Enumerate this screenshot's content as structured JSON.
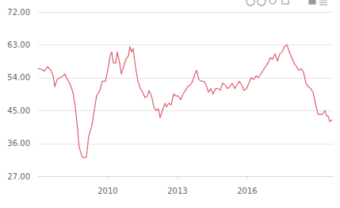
{
  "chart_data": {
    "type": "line",
    "x": [
      2007.0,
      2007.14,
      2007.27,
      2007.41,
      2007.55,
      2007.65,
      2007.72,
      2007.82,
      2007.95,
      2008.09,
      2008.16,
      2008.26,
      2008.36,
      2008.5,
      2008.6,
      2008.7,
      2008.77,
      2008.88,
      2008.98,
      2009.08,
      2009.18,
      2009.32,
      2009.42,
      2009.52,
      2009.66,
      2009.76,
      2009.9,
      2010.0,
      2010.1,
      2010.17,
      2010.24,
      2010.34,
      2010.41,
      2010.51,
      2010.58,
      2010.68,
      2010.78,
      2010.89,
      2010.95,
      2011.02,
      2011.09,
      2011.19,
      2011.3,
      2011.4,
      2011.5,
      2011.6,
      2011.71,
      2011.77,
      2011.88,
      2011.98,
      2012.08,
      2012.18,
      2012.25,
      2012.35,
      2012.46,
      2012.52,
      2012.63,
      2012.73,
      2012.83,
      2012.93,
      2013.03,
      2013.14,
      2013.24,
      2013.34,
      2013.44,
      2013.55,
      2013.65,
      2013.75,
      2013.82,
      2013.92,
      2014.02,
      2014.13,
      2014.23,
      2014.33,
      2014.43,
      2014.53,
      2014.64,
      2014.74,
      2014.84,
      2014.94,
      2015.05,
      2015.15,
      2015.25,
      2015.35,
      2015.46,
      2015.56,
      2015.66,
      2015.76,
      2015.86,
      2015.97,
      2016.07,
      2016.17,
      2016.27,
      2016.38,
      2016.48,
      2016.58,
      2016.68,
      2016.79,
      2016.89,
      2016.99,
      2017.09,
      2017.19,
      2017.3,
      2017.4,
      2017.5,
      2017.6,
      2017.71,
      2017.81,
      2017.91,
      2018.01,
      2018.12,
      2018.22,
      2018.32,
      2018.42,
      2018.52,
      2018.63,
      2018.73,
      2018.83,
      2018.93,
      2019.04,
      2019.14,
      2019.24,
      2019.34,
      2019.41,
      2019.48,
      2019.55,
      2019.65
    ],
    "values": [
      56.5,
      56.3,
      55.8,
      57,
      56,
      54.5,
      51.5,
      53.5,
      54,
      54.5,
      55,
      53.5,
      52.5,
      50,
      46,
      40,
      35,
      32.5,
      32,
      32.3,
      38,
      41,
      45,
      49,
      50.5,
      53,
      53,
      56,
      60,
      61,
      58,
      58,
      61,
      58,
      55,
      57,
      59,
      60,
      62.5,
      61,
      62,
      57,
      53,
      51,
      50,
      48.5,
      49,
      50.5,
      49,
      46,
      45,
      45.5,
      43,
      45,
      47,
      46,
      47,
      46.5,
      49.5,
      49,
      49,
      48,
      49.5,
      50.5,
      51.5,
      52,
      53,
      55,
      56,
      53.5,
      53,
      53,
      52,
      50,
      51,
      49.5,
      51,
      51,
      50.5,
      52.5,
      52,
      51,
      51.5,
      52.5,
      51,
      52,
      53,
      52,
      50.5,
      51,
      52.5,
      54,
      53.5,
      54.5,
      54,
      55,
      56,
      57,
      58,
      59.5,
      59,
      60.5,
      58.5,
      60.5,
      61,
      62.5,
      63,
      61,
      59.5,
      58,
      57,
      56,
      56.5,
      55.5,
      52.5,
      51.5,
      51,
      50,
      47,
      44,
      44,
      44,
      45,
      43.5,
      43.5,
      42,
      42.5
    ],
    "color": "#dc5f6b",
    "xlim": [
      2007,
      2019.7
    ],
    "xticks": [
      2010,
      2013,
      2016
    ],
    "ylim": [
      27,
      72
    ],
    "yticks": [
      {
        "value": 27,
        "label": "27.00"
      },
      {
        "value": 36,
        "label": "36.00"
      },
      {
        "value": 45,
        "label": "45.00"
      },
      {
        "value": 54,
        "label": "54.00"
      },
      {
        "value": 63,
        "label": "63.00"
      },
      {
        "value": 72,
        "label": "72.00"
      }
    ],
    "grid": true
  }
}
